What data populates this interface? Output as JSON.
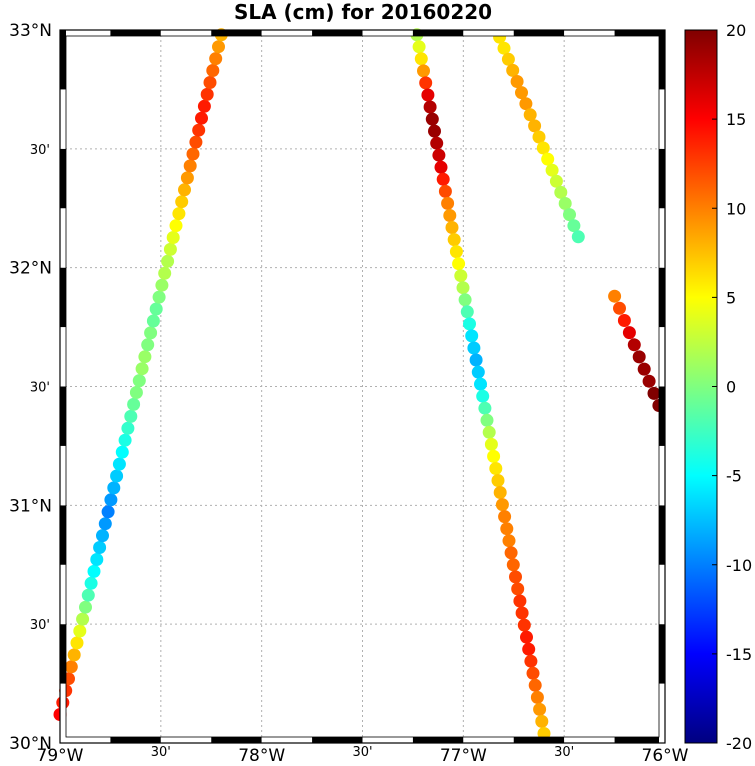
{
  "chart_data": {
    "type": "scatter",
    "title": "SLA (cm) for 20160220",
    "x_ticks_major": [
      {
        "v": -79,
        "label": "79°W"
      },
      {
        "v": -78,
        "label": "78°W"
      },
      {
        "v": -77,
        "label": "77°W"
      },
      {
        "v": -76,
        "label": "76°W"
      }
    ],
    "x_ticks_minor": [
      {
        "v": -78.5,
        "label": "30'"
      },
      {
        "v": -77.5,
        "label": "30'"
      },
      {
        "v": -76.5,
        "label": "30'"
      }
    ],
    "y_ticks_major": [
      {
        "v": 30,
        "label": "30°N"
      },
      {
        "v": 31,
        "label": "31°N"
      },
      {
        "v": 32,
        "label": "32°N"
      },
      {
        "v": 33,
        "label": "33°N"
      }
    ],
    "y_ticks_minor": [
      {
        "v": 30.5,
        "label": "30'"
      },
      {
        "v": 31.5,
        "label": "30'"
      },
      {
        "v": 32.5,
        "label": "30'"
      }
    ],
    "xlim": [
      -79,
      -76
    ],
    "ylim": [
      30,
      33
    ],
    "grid": true,
    "colorbar": {
      "min": -20,
      "max": 20,
      "ticks": [
        {
          "v": 20,
          "label": "20"
        },
        {
          "v": 15,
          "label": "15"
        },
        {
          "v": 10,
          "label": "10"
        },
        {
          "v": 5,
          "label": "5"
        },
        {
          "v": 0,
          "label": "0"
        },
        {
          "v": -5,
          "label": "-5"
        },
        {
          "v": -10,
          "label": "-10"
        },
        {
          "v": -15,
          "label": "-15"
        },
        {
          "v": -20,
          "label": "-20"
        }
      ],
      "colormap": "jet"
    },
    "tracks": [
      {
        "lon_start": -79.0,
        "lat_start": 30.12,
        "lon_end": -78.2,
        "lat_end": 32.98,
        "sla": [
          15,
          14,
          13,
          12,
          10,
          8,
          6,
          4,
          2,
          0,
          -2,
          -4,
          -5,
          -6,
          -7,
          -8,
          -9,
          -10,
          -9,
          -8,
          -7,
          -6,
          -5,
          -4,
          -3,
          -2,
          -1,
          0,
          0,
          1,
          1,
          0,
          0,
          -1,
          -1,
          0,
          1,
          2,
          2,
          3,
          4,
          5,
          6,
          7,
          8,
          9,
          10,
          11,
          12,
          13,
          14,
          14,
          13,
          12,
          11,
          10,
          9,
          8
        ]
      },
      {
        "lon_start": -77.23,
        "lat_start": 32.98,
        "lon_end": -76.6,
        "lat_end": 30.04,
        "sla": [
          2,
          4,
          6,
          9,
          13,
          16,
          18,
          19,
          19,
          18,
          17,
          16,
          14,
          12,
          10,
          9,
          8,
          7,
          6,
          5,
          3,
          2,
          0,
          -2,
          -4,
          -6,
          -7,
          -8,
          -7,
          -6,
          -4,
          -2,
          0,
          2,
          4,
          5,
          6,
          7,
          8,
          9,
          10,
          10,
          10,
          11,
          11,
          12,
          12,
          13,
          13,
          13,
          14,
          14,
          13,
          12,
          11,
          10,
          9,
          8,
          7
        ]
      },
      {
        "lon_start": -76.82,
        "lat_start": 32.97,
        "lon_end": -76.43,
        "lat_end": 32.13,
        "sla": [
          6,
          6,
          7,
          8,
          9,
          9,
          9,
          8,
          8,
          7,
          6,
          5,
          4,
          3,
          2,
          1,
          0,
          -1,
          -2
        ]
      },
      {
        "lon_start": -76.25,
        "lat_start": 31.88,
        "lon_end": -76.03,
        "lat_end": 31.42,
        "sla": [
          10,
          12,
          14,
          16,
          18,
          19,
          19,
          19,
          20,
          20
        ]
      }
    ]
  }
}
